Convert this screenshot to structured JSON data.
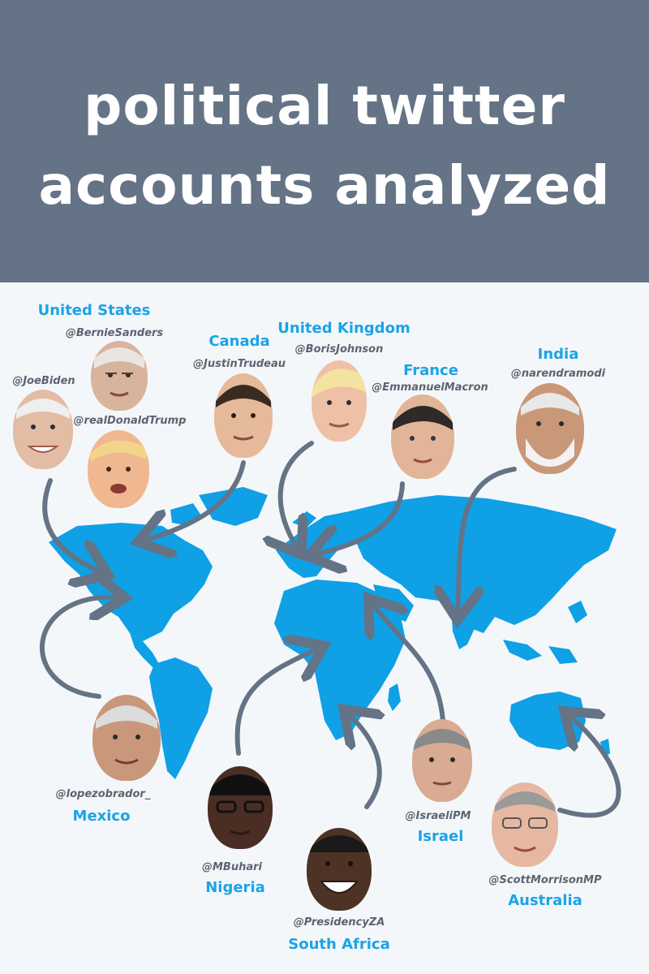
{
  "header": {
    "title_line1": "political twitter",
    "title_line2": "accounts analyzed"
  },
  "colors": {
    "header_bg": "#647385",
    "map_land": "#0fa0e6",
    "country_label": "#1ba3e6",
    "arrow": "#647385",
    "background": "#f4f7fa"
  },
  "countries": {
    "us": "United States",
    "canada": "Canada",
    "uk": "United Kingdom",
    "france": "France",
    "india": "India",
    "mexico": "Mexico",
    "nigeria": "Nigeria",
    "south_africa": "South Africa",
    "israel": "Israel",
    "australia": "Australia"
  },
  "handles": {
    "bernie": "@BernieSanders",
    "biden": "@JoeBiden",
    "trump": "@realDonaldTrump",
    "trudeau": "@JustinTrudeau",
    "johnson": "@BorisJohnson",
    "macron": "@EmmanuelMacron",
    "modi": "@narendramodi",
    "amlo": "@lopezobrador_",
    "buhari": "@MBuhari",
    "ramaphosa": "@PresidencyZA",
    "netanyahu": "@IsraeliPM",
    "morrison": "@ScottMorrisonMP"
  },
  "icons": {
    "map": "world-map-icon",
    "arrow": "curved-arrow-icon",
    "portrait": "leader-portrait-icon"
  }
}
